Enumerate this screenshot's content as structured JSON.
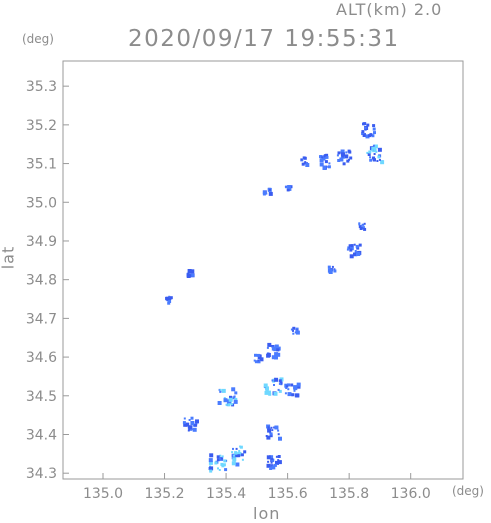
{
  "header": {
    "altitude_label": "ALT(km) 2.0",
    "timestamp": "2020/09/17 19:55:31",
    "unit_left": "(deg)",
    "unit_right": "(deg)"
  },
  "chart_data": {
    "type": "heatmap",
    "title": "2020/09/17 19:55:31",
    "xlabel": "lon",
    "ylabel": "lat",
    "xlim": [
      134.87,
      136.17
    ],
    "ylim": [
      34.285,
      35.365
    ],
    "x_ticks": [
      135.0,
      135.2,
      135.4,
      135.6,
      135.8,
      136.0
    ],
    "y_ticks": [
      34.3,
      34.4,
      34.5,
      34.6,
      34.7,
      34.8,
      34.9,
      35.0,
      35.1,
      35.2,
      35.3
    ],
    "grid": false,
    "colors": {
      "weak": "#4a7cff",
      "medium": "#3a5cf0",
      "strong": "#6fd8ff",
      "axis": "#9a9a9a"
    },
    "echo_clusters": [
      {
        "lon": 135.88,
        "lat": 35.13,
        "intensity": "strong"
      },
      {
        "lon": 135.86,
        "lat": 35.19,
        "intensity": "medium"
      },
      {
        "lon": 135.78,
        "lat": 35.12,
        "intensity": "medium"
      },
      {
        "lon": 135.72,
        "lat": 35.11,
        "intensity": "medium"
      },
      {
        "lon": 135.65,
        "lat": 35.11,
        "intensity": "weak"
      },
      {
        "lon": 135.6,
        "lat": 35.04,
        "intensity": "weak"
      },
      {
        "lon": 135.53,
        "lat": 35.03,
        "intensity": "weak"
      },
      {
        "lon": 135.84,
        "lat": 34.94,
        "intensity": "weak"
      },
      {
        "lon": 135.81,
        "lat": 34.88,
        "intensity": "medium"
      },
      {
        "lon": 135.74,
        "lat": 34.83,
        "intensity": "weak"
      },
      {
        "lon": 135.28,
        "lat": 34.82,
        "intensity": "weak"
      },
      {
        "lon": 135.21,
        "lat": 34.75,
        "intensity": "weak"
      },
      {
        "lon": 135.55,
        "lat": 34.62,
        "intensity": "medium"
      },
      {
        "lon": 135.55,
        "lat": 34.53,
        "intensity": "strong"
      },
      {
        "lon": 135.5,
        "lat": 34.6,
        "intensity": "weak"
      },
      {
        "lon": 135.61,
        "lat": 34.52,
        "intensity": "medium"
      },
      {
        "lon": 135.62,
        "lat": 34.67,
        "intensity": "weak"
      },
      {
        "lon": 135.4,
        "lat": 34.5,
        "intensity": "strong"
      },
      {
        "lon": 135.55,
        "lat": 34.41,
        "intensity": "medium"
      },
      {
        "lon": 135.55,
        "lat": 34.33,
        "intensity": "medium"
      },
      {
        "lon": 135.44,
        "lat": 34.35,
        "intensity": "strong"
      },
      {
        "lon": 135.37,
        "lat": 34.33,
        "intensity": "strong"
      },
      {
        "lon": 135.28,
        "lat": 34.43,
        "intensity": "medium"
      }
    ]
  }
}
